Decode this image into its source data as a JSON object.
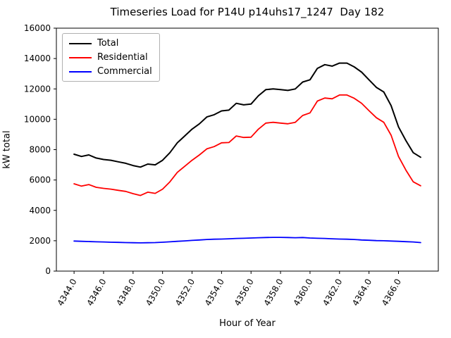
{
  "chart_data": {
    "type": "line",
    "title": "Timeseries Load for P14U p14uhs17_1247  Day 182",
    "xlabel": "Hour of Year",
    "ylabel": "kW total",
    "grid": false,
    "legend_position": "upper-left",
    "xlim": [
      4342.8,
      4368.7
    ],
    "ylim": [
      0,
      16000
    ],
    "x_start": 4344.0,
    "x_step": 0.5,
    "xticks": [
      4344,
      4346,
      4348,
      4350,
      4352,
      4354,
      4356,
      4358,
      4360,
      4362,
      4364,
      4366
    ],
    "xtick_labels": [
      "4344.0",
      "4346.0",
      "4348.0",
      "4350.0",
      "4352.0",
      "4354.0",
      "4356.0",
      "4358.0",
      "4360.0",
      "4362.0",
      "4364.0",
      "4366.0"
    ],
    "yticks": [
      0,
      2000,
      4000,
      6000,
      8000,
      10000,
      12000,
      14000,
      16000
    ],
    "ytick_labels": [
      "0",
      "2000",
      "4000",
      "6000",
      "8000",
      "10000",
      "12000",
      "14000",
      "16000"
    ],
    "series": [
      {
        "name": "Total",
        "color": "#000000",
        "values": [
          7700,
          7550,
          7650,
          7450,
          7350,
          7300,
          7200,
          7100,
          6950,
          6850,
          7050,
          7000,
          7300,
          7800,
          8450,
          8900,
          9350,
          9700,
          10150,
          10300,
          10550,
          10600,
          11050,
          10950,
          11000,
          11550,
          11950,
          12000,
          11950,
          11900,
          12000,
          12450,
          12600,
          13350,
          13600,
          13500,
          13700,
          13700,
          13450,
          13100,
          12600,
          12100,
          11800,
          10900,
          9500,
          8600,
          7800,
          7500
        ]
      },
      {
        "name": "Residential",
        "color": "#ff0000",
        "values": [
          5750,
          5600,
          5700,
          5520,
          5450,
          5400,
          5320,
          5250,
          5100,
          4980,
          5200,
          5120,
          5400,
          5880,
          6500,
          6900,
          7300,
          7650,
          8050,
          8200,
          8450,
          8470,
          8900,
          8800,
          8820,
          9350,
          9750,
          9800,
          9750,
          9700,
          9800,
          10250,
          10420,
          11200,
          11400,
          11350,
          11600,
          11600,
          11380,
          11050,
          10570,
          10100,
          9800,
          8950,
          7550,
          6650,
          5880,
          5620
        ]
      },
      {
        "name": "Commercial",
        "color": "#0000ff",
        "values": [
          1980,
          1960,
          1950,
          1930,
          1920,
          1900,
          1890,
          1880,
          1870,
          1860,
          1870,
          1880,
          1900,
          1930,
          1960,
          1990,
          2020,
          2050,
          2080,
          2100,
          2110,
          2130,
          2150,
          2160,
          2180,
          2200,
          2210,
          2220,
          2220,
          2210,
          2200,
          2210,
          2180,
          2160,
          2150,
          2130,
          2110,
          2100,
          2080,
          2050,
          2030,
          2010,
          2000,
          1980,
          1960,
          1940,
          1920,
          1880
        ]
      }
    ]
  }
}
